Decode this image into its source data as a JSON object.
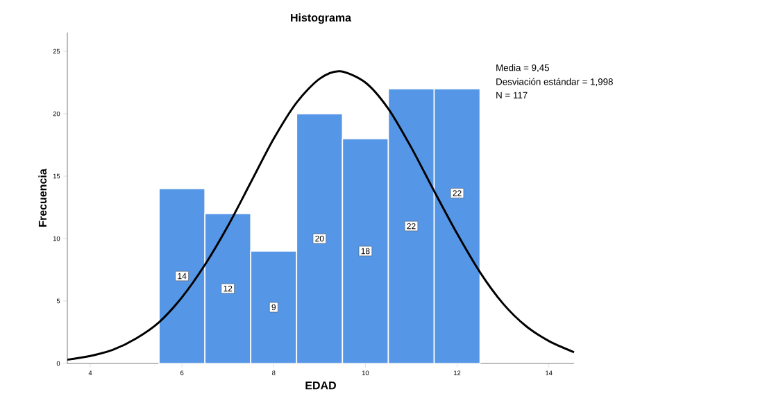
{
  "chart_data": {
    "type": "histogram",
    "title": "Histograma",
    "xlabel": "EDAD",
    "ylabel": "Frecuencia",
    "bins": [
      5.5,
      6.5,
      7.5,
      8.5,
      9.5,
      10.5,
      11.5,
      12.5
    ],
    "values": [
      14,
      12,
      9,
      20,
      18,
      22,
      22
    ],
    "color": "#5596e6",
    "value_labels": [
      "14",
      "12",
      "9",
      "20",
      "18",
      "22",
      "22"
    ],
    "series": [
      {
        "type": "line",
        "color": "#000000",
        "x": [
          3.5,
          4,
          4.5,
          5,
          5.5,
          6,
          6.5,
          7,
          7.5,
          8,
          8.5,
          9,
          9.45,
          10,
          10.5,
          11,
          11.5,
          12,
          12.5,
          13,
          13.5,
          14,
          14.55
        ],
        "values": [
          0.3,
          0.6,
          1.1,
          2.0,
          3.3,
          5.3,
          7.9,
          11.0,
          14.5,
          18.0,
          20.9,
          22.8,
          23.4,
          22.5,
          20.4,
          17.3,
          13.8,
          10.4,
          7.3,
          4.8,
          3.0,
          1.8,
          0.9
        ]
      }
    ],
    "xlim": [
      3.5,
      14.55
    ],
    "ylim": [
      0,
      26.5
    ],
    "xticks": [
      4,
      6,
      8,
      10,
      12,
      14
    ],
    "yticks": [
      0,
      5,
      10,
      15,
      20,
      25
    ],
    "annotations": [
      "Media = 9,45",
      "Desviación estándar = 1,998",
      "N = 117"
    ]
  }
}
